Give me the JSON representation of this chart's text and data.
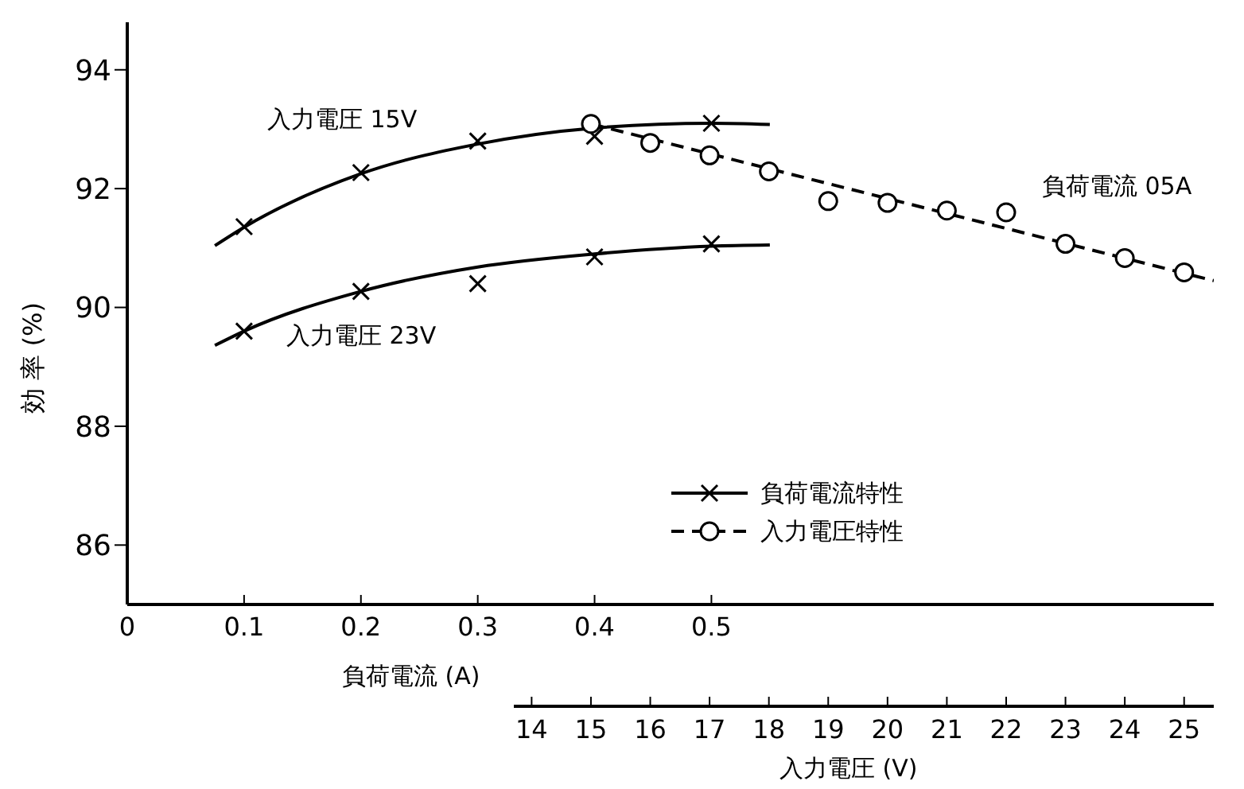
{
  "chart_data": {
    "type": "line",
    "xlabel": "負荷電流 (A)",
    "ylabel": "効 率 (%)",
    "x2label": "入力電圧 (V)",
    "xlim": [
      0,
      0.93
    ],
    "xticks": [
      0,
      0.1,
      0.2,
      0.3,
      0.4,
      0.5
    ],
    "x2lim": [
      13.7,
      25.5
    ],
    "x2ticks": [
      14,
      15,
      16,
      17,
      18,
      19,
      20,
      21,
      22,
      23,
      24,
      25
    ],
    "ylim": [
      85,
      94.8
    ],
    "yticks": [
      86,
      88,
      90,
      92,
      94
    ],
    "legend": "right",
    "series": [
      {
        "x": [
          0.075,
          0.1,
          0.2,
          0.3,
          0.4,
          0.5,
          0.55
        ],
        "values": [
          91.04,
          91.35,
          92.25,
          92.75,
          93.02,
          93.1,
          93.08
        ],
        "color": "#000000",
        "line_style": "solid",
        "marker": "none"
      },
      {
        "x": [
          0.075,
          0.1,
          0.2,
          0.3,
          0.4,
          0.5,
          0.55
        ],
        "values": [
          89.36,
          89.6,
          90.27,
          90.68,
          90.9,
          91.03,
          91.05
        ],
        "color": "#000000",
        "line_style": "solid",
        "marker": "none"
      },
      {
        "type": "scatter",
        "name": "負荷電流特性",
        "x": [
          0.1,
          0.2,
          0.3,
          0.4,
          0.5
        ],
        "values": [
          91.36,
          92.27,
          92.8,
          92.88,
          93.1
        ],
        "color": "#000000",
        "marker": "cross",
        "line_style": "solid"
      },
      {
        "type": "scatter",
        "x": [
          0.1,
          0.2,
          0.3,
          0.4,
          0.5
        ],
        "values": [
          89.6,
          90.27,
          90.4,
          90.85,
          91.07
        ],
        "color": "#000000",
        "marker": "cross"
      },
      {
        "axis": "x2",
        "x": [
          15,
          25.5
        ],
        "values": [
          93.09,
          90.45
        ],
        "color": "#000000",
        "line_style": "dashed",
        "marker": "none"
      },
      {
        "type": "scatter",
        "axis": "x2",
        "name": "入力電圧特性",
        "x": [
          15,
          16,
          17,
          18,
          19,
          20,
          21,
          22,
          23,
          24,
          25
        ],
        "values": [
          93.09,
          92.77,
          92.56,
          92.29,
          91.79,
          91.76,
          91.63,
          91.6,
          91.07,
          90.83,
          90.59
        ],
        "color": "#000000",
        "marker": "circle",
        "line_style": "dashed"
      }
    ],
    "annotations": [
      "入力電圧 15V",
      "入力電圧 23V",
      "負荷電流 05A"
    ]
  }
}
